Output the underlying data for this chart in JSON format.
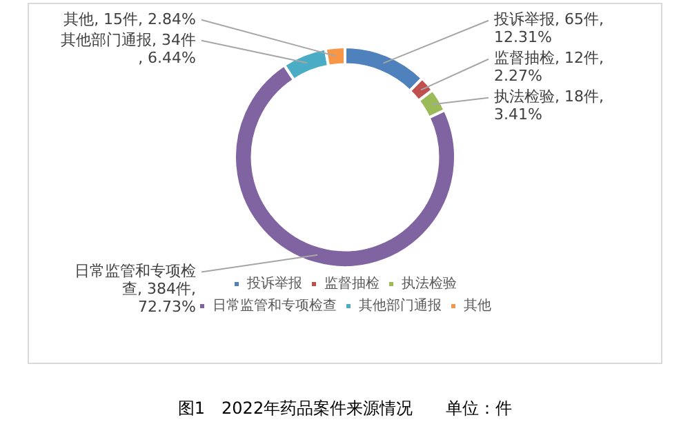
{
  "chart_data": {
    "type": "donut",
    "title": "图1　2022年药品案件来源情况　　单位：件",
    "categories": [
      "投诉举报",
      "监督抽检",
      "执法检验",
      "日常监管和专项检查",
      "其他部门通报",
      "其他"
    ],
    "values": [
      65,
      12,
      18,
      384,
      34,
      15
    ],
    "colors": [
      "#4f81bd",
      "#c0504d",
      "#9bbb59",
      "#8064a2",
      "#4bacc6",
      "#f79646"
    ],
    "value_labels": [
      "投诉举报, 65件, 12.31%",
      "监督抽检, 12件, 2.27%",
      "执法检验, 18件, 3.41%",
      "日常监管和专项检查, 384件, 72.73%",
      "其他部门通报, 34件, 6.44%",
      "其他, 15件, 2.84%"
    ],
    "legend": "bottom"
  }
}
